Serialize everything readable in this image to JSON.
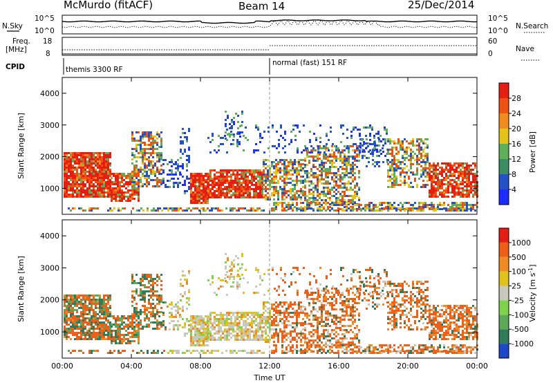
{
  "header": {
    "station": "McMurdo (fitACF)",
    "beam": "Beam 14",
    "date": "25/Dec/2014"
  },
  "top_panels": {
    "nsky_label": "N.Sky",
    "nsearch_label": "N.Search",
    "noise_ticks": [
      "10^5",
      "10^0"
    ],
    "freq_label_1": "Freq.",
    "freq_label_2": "[MHz]",
    "freq_ticks": [
      "18",
      "8"
    ],
    "nave_label": "Nave",
    "nave_ticks": [
      "60",
      "0"
    ],
    "cpid_label": "CPID",
    "cpid_1": "themis 3300 RF",
    "cpid_2": "normal (fast) 151 RF"
  },
  "x_axis": {
    "label": "Time UT",
    "ticks": [
      "00:00",
      "04:00",
      "08:00",
      "12:00",
      "16:00",
      "20:00",
      "00:00"
    ]
  },
  "chart_data": [
    {
      "type": "heatmap",
      "quantity": "Power",
      "ylabel": "Slant Range [km]",
      "xlabel": "Time UT",
      "ylim": [
        180,
        4500
      ],
      "yticks": [
        1000,
        2000,
        3000,
        4000
      ],
      "colorbar": {
        "label": "Power [dB]",
        "ticks": [
          "4",
          "8",
          "12",
          "16",
          "20",
          "24",
          "28"
        ],
        "colors": [
          "#1d2bff",
          "#2450c8",
          "#3c8c64",
          "#5fae5a",
          "#e5c419",
          "#f28c1e",
          "#ee5212",
          "#e61e12"
        ]
      }
    },
    {
      "type": "heatmap",
      "quantity": "Velocity",
      "ylabel": "Slant Range [km]",
      "xlabel": "Time UT",
      "ylim": [
        180,
        4500
      ],
      "yticks": [
        1000,
        2000,
        3000,
        4000
      ],
      "colorbar": {
        "label": "Velocity [m s-1]",
        "ticks": [
          "1000",
          "500",
          "100",
          "25",
          "-25",
          "-100",
          "-500",
          "-1000"
        ],
        "colors": [
          "#1e46c8",
          "#2e7c5a",
          "#5ea85a",
          "#7fd24a",
          "#c8c8be",
          "#e0c21c",
          "#f08a22",
          "#ee6019",
          "#e41e14"
        ]
      }
    }
  ]
}
